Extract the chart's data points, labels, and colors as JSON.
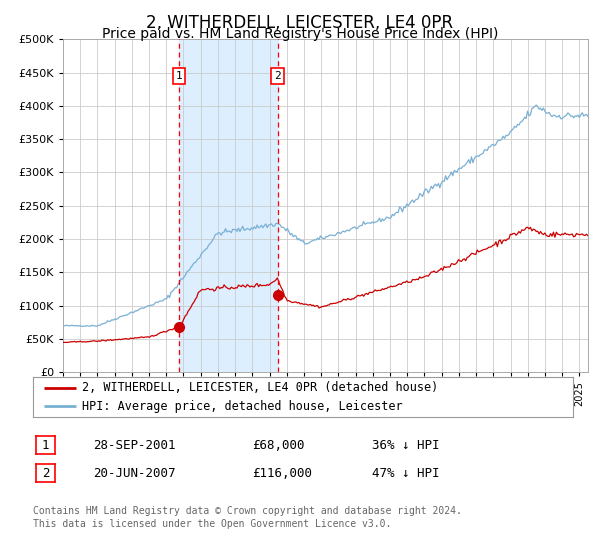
{
  "title": "2, WITHERDELL, LEICESTER, LE4 0PR",
  "subtitle": "Price paid vs. HM Land Registry's House Price Index (HPI)",
  "title_fontsize": 12,
  "subtitle_fontsize": 10,
  "background_color": "#ffffff",
  "plot_bg_color": "#ffffff",
  "grid_color": "#cccccc",
  "hpi_color": "#7ab0d4",
  "price_color": "#cc0000",
  "highlight_color": "#ddeeff",
  "ylim": [
    0,
    500000
  ],
  "yticks": [
    0,
    50000,
    100000,
    150000,
    200000,
    250000,
    300000,
    350000,
    400000,
    450000,
    500000
  ],
  "sale1_price": 68000,
  "sale1_year": 2001.75,
  "sale2_price": 116000,
  "sale2_year": 2007.47,
  "legend_line1": "2, WITHERDELL, LEICESTER, LE4 0PR (detached house)",
  "legend_line2": "HPI: Average price, detached house, Leicester",
  "table_row1_label": "1",
  "table_row1_date": "28-SEP-2001",
  "table_row1_price": "£68,000",
  "table_row1_hpi": "36% ↓ HPI",
  "table_row2_label": "2",
  "table_row2_date": "20-JUN-2007",
  "table_row2_price": "£116,000",
  "table_row2_hpi": "47% ↓ HPI",
  "footnote1": "Contains HM Land Registry data © Crown copyright and database right 2024.",
  "footnote2": "This data is licensed under the Open Government Licence v3.0.",
  "xstart": 1995.0,
  "xend": 2025.5
}
